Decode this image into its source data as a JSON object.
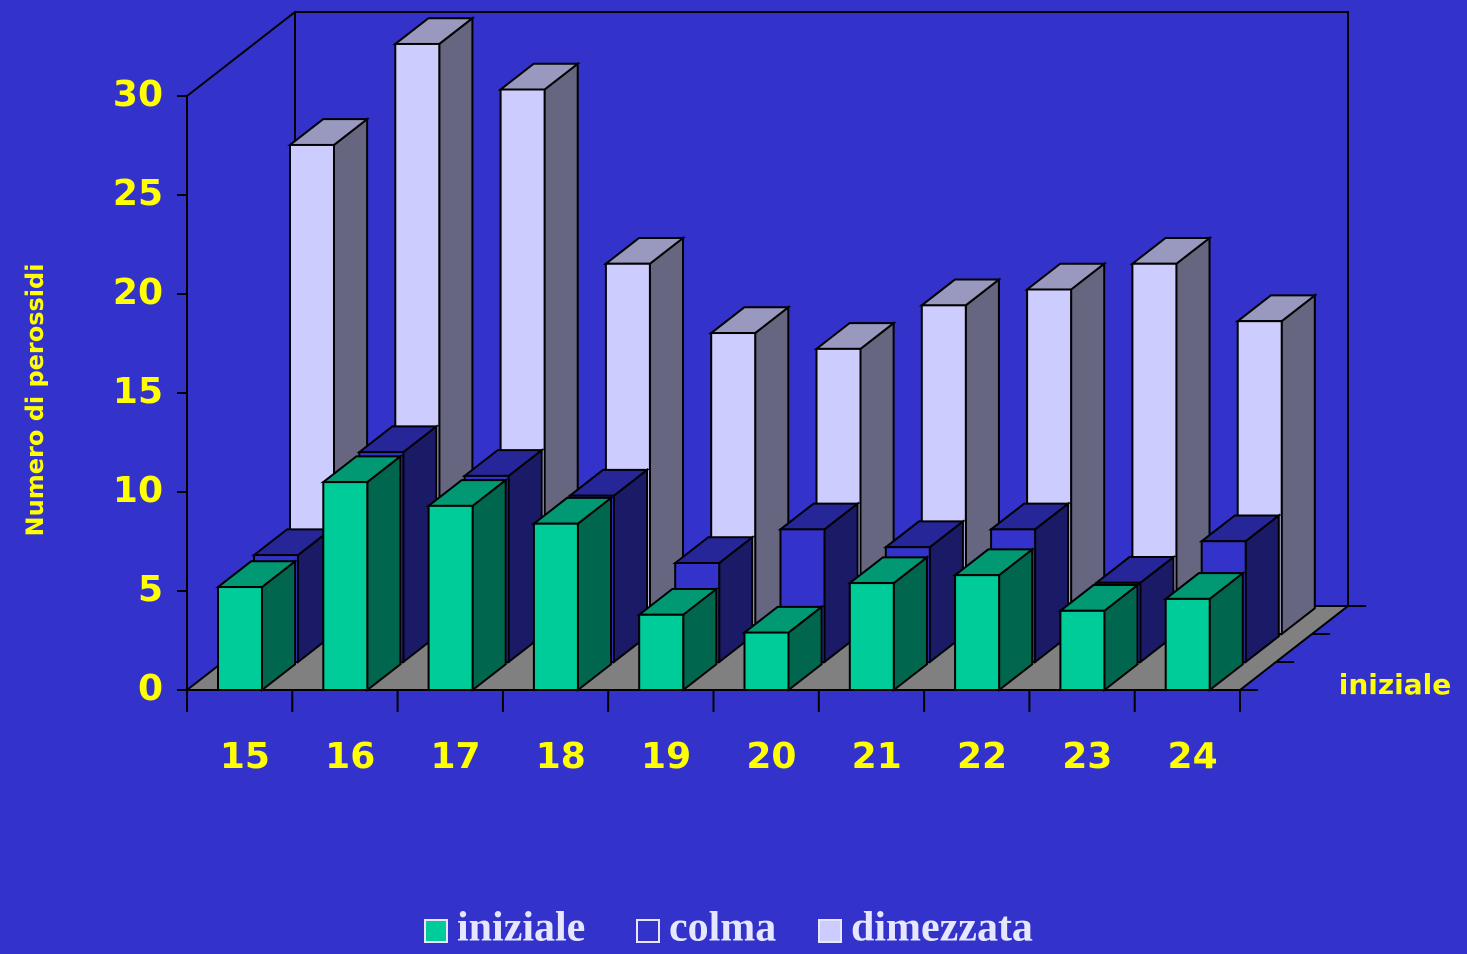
{
  "chart_data": {
    "type": "bar3d",
    "y_label": "Numero di perossidi",
    "categories": [
      "15",
      "16",
      "17",
      "18",
      "19",
      "20",
      "21",
      "22",
      "23",
      "24"
    ],
    "series": [
      {
        "name": "iniziale",
        "color": "#00cc99",
        "values": [
          5.2,
          10.5,
          9.3,
          8.4,
          3.8,
          2.9,
          5.4,
          5.8,
          4.0,
          4.6
        ]
      },
      {
        "name": "colma",
        "color": "#3333cc",
        "values": [
          5.4,
          10.6,
          9.4,
          8.4,
          5.0,
          6.7,
          5.8,
          6.7,
          4.0,
          6.1
        ]
      },
      {
        "name": "dimezzata",
        "color": "#ccccff",
        "values": [
          24.7,
          29.8,
          27.5,
          18.7,
          15.2,
          14.4,
          16.6,
          17.4,
          18.7,
          15.8
        ]
      }
    ],
    "ylim": [
      0,
      30
    ],
    "yticks": [
      0,
      5,
      10,
      15,
      20,
      25,
      30
    ]
  }
}
